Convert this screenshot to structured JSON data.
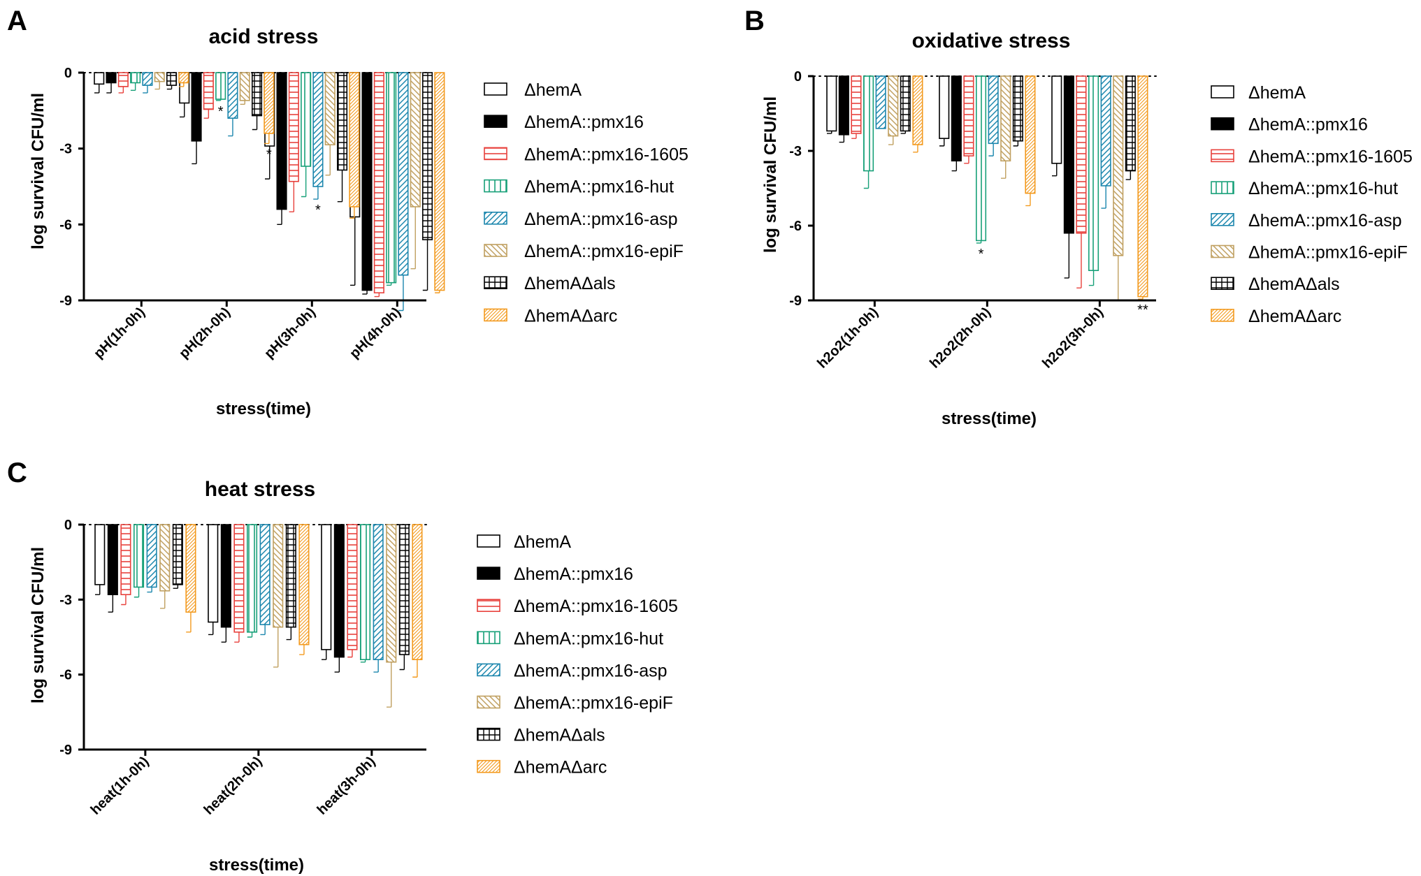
{
  "legend": [
    {
      "label": "ΔhemA",
      "color": "#000000",
      "pattern": "none"
    },
    {
      "label": "ΔhemA::pmx16",
      "color": "#000000",
      "pattern": "solid"
    },
    {
      "label": "ΔhemA::pmx16-1605",
      "color": "#e8413c",
      "pattern": "hlines"
    },
    {
      "label": "ΔhemA::pmx16-hut",
      "color": "#17a078",
      "pattern": "vlines"
    },
    {
      "label": "ΔhemA::pmx16-asp",
      "color": "#1b86ad",
      "pattern": "fdiag"
    },
    {
      "label": "ΔhemA::pmx16-epiF",
      "color": "#c0a060",
      "pattern": "bdiag"
    },
    {
      "label": "ΔhemAΔals",
      "color": "#000000",
      "pattern": "grid"
    },
    {
      "label": "ΔhemAΔarc",
      "color": "#f39a1e",
      "pattern": "dense"
    }
  ],
  "chart_data": [
    {
      "panel": "A",
      "type": "bar",
      "title": "acid stress",
      "xlabel": "stress(time)",
      "ylabel": "log survival CFU/ml",
      "ylim": [
        -9,
        0
      ],
      "yticks": [
        "0",
        "-3",
        "-6",
        "-9"
      ],
      "reference_line": 0,
      "categories": [
        "pH(1h-0h)",
        "pH(2h-0h)",
        "pH(3h-0h)",
        "pH(4h-0h)"
      ],
      "series": [
        {
          "name": "ΔhemA",
          "values": [
            -0.45,
            -1.2,
            -2.9,
            -5.7
          ],
          "errors": [
            0.35,
            0.55,
            1.3,
            2.7
          ]
        },
        {
          "name": "ΔhemA::pmx16",
          "values": [
            -0.4,
            -2.7,
            -5.4,
            -8.6
          ],
          "errors": [
            0.4,
            0.9,
            0.6,
            0.15
          ]
        },
        {
          "name": "ΔhemA::pmx16-1605",
          "values": [
            -0.55,
            -1.45,
            -4.3,
            -8.7
          ],
          "errors": [
            0.25,
            0.35,
            1.2,
            0.15
          ]
        },
        {
          "name": "ΔhemA::pmx16-hut",
          "values": [
            -0.4,
            -1.05,
            -3.7,
            -8.3
          ],
          "errors": [
            0.3,
            0.05,
            1.2,
            0.1
          ]
        },
        {
          "name": "ΔhemA::pmx16-asp",
          "values": [
            -0.5,
            -1.8,
            -4.5,
            -8.0
          ],
          "errors": [
            0.3,
            0.7,
            0.5,
            1.4
          ]
        },
        {
          "name": "ΔhemA::pmx16-epiF",
          "values": [
            -0.35,
            -1.1,
            -2.85,
            -5.3
          ],
          "errors": [
            0.3,
            0.15,
            1.2,
            2.45
          ]
        },
        {
          "name": "ΔhemAΔals",
          "values": [
            -0.5,
            -1.7,
            -3.85,
            -6.6
          ],
          "errors": [
            0.15,
            0.55,
            1.25,
            2.0
          ]
        },
        {
          "name": "ΔhemAΔarc",
          "values": [
            -0.4,
            -2.4,
            -5.3,
            -8.6
          ],
          "errors": [
            0.15,
            0.4,
            0.45,
            0.1
          ]
        }
      ],
      "annotations": [
        {
          "text": "*",
          "category": "pH(2h-0h)",
          "series": "ΔhemA::pmx16-hut"
        },
        {
          "text": "*",
          "category": "pH(2h-0h)",
          "series": "ΔhemAΔarc"
        },
        {
          "text": "*",
          "category": "pH(3h-0h)",
          "series": "ΔhemA::pmx16-asp"
        }
      ]
    },
    {
      "panel": "B",
      "type": "bar",
      "title": "oxidative stress",
      "xlabel": "stress(time)",
      "ylabel": "log survival CFU/ml",
      "ylim": [
        -9,
        0
      ],
      "yticks": [
        "0",
        "-3",
        "-6",
        "-9"
      ],
      "reference_line": 0,
      "categories": [
        "h2o2(1h-0h)",
        "h2o2(2h-0h)",
        "h2o2(3h-0h)"
      ],
      "series": [
        {
          "name": "ΔhemA",
          "values": [
            -2.2,
            -2.5,
            -3.5
          ],
          "errors": [
            0.1,
            0.3,
            0.5
          ]
        },
        {
          "name": "ΔhemA::pmx16",
          "values": [
            -2.35,
            -3.4,
            -6.3
          ],
          "errors": [
            0.3,
            0.4,
            1.8
          ]
        },
        {
          "name": "ΔhemA::pmx16-1605",
          "values": [
            -2.3,
            -3.2,
            -6.3
          ],
          "errors": [
            0.2,
            0.3,
            2.2
          ]
        },
        {
          "name": "ΔhemA::pmx16-hut",
          "values": [
            -3.8,
            -6.6,
            -7.8
          ],
          "errors": [
            0.7,
            0.1,
            0.6
          ]
        },
        {
          "name": "ΔhemA::pmx16-asp",
          "values": [
            -2.1,
            -2.7,
            -4.4
          ],
          "errors": [
            0.0,
            0.5,
            0.9
          ]
        },
        {
          "name": "ΔhemA::pmx16-epiF",
          "values": [
            -2.4,
            -3.4,
            -7.2
          ],
          "errors": [
            0.35,
            0.7,
            1.8
          ]
        },
        {
          "name": "ΔhemAΔals",
          "values": [
            -2.2,
            -2.6,
            -3.8
          ],
          "errors": [
            0.1,
            0.2,
            0.35
          ]
        },
        {
          "name": "ΔhemAΔarc",
          "values": [
            -2.75,
            -4.7,
            -8.85
          ],
          "errors": [
            0.3,
            0.5,
            0.1
          ]
        }
      ],
      "annotations": [
        {
          "text": "*",
          "category": "h2o2(2h-0h)",
          "series": "ΔhemA::pmx16-hut"
        },
        {
          "text": "**",
          "category": "h2o2(3h-0h)",
          "series": "ΔhemAΔarc"
        }
      ]
    },
    {
      "panel": "C",
      "type": "bar",
      "title": "heat stress",
      "xlabel": "stress(time)",
      "ylabel": "log survival CFU/ml",
      "ylim": [
        -9,
        0
      ],
      "yticks": [
        "0",
        "-3",
        "-6",
        "-9"
      ],
      "reference_line": 0,
      "categories": [
        "heat(1h-0h)",
        "heat(2h-0h)",
        "heat(3h-0h)"
      ],
      "series": [
        {
          "name": "ΔhemA",
          "values": [
            -2.4,
            -3.9,
            -5.0
          ],
          "errors": [
            0.4,
            0.5,
            0.4
          ]
        },
        {
          "name": "ΔhemA::pmx16",
          "values": [
            -2.8,
            -4.1,
            -5.3
          ],
          "errors": [
            0.7,
            0.6,
            0.6
          ]
        },
        {
          "name": "ΔhemA::pmx16-1605",
          "values": [
            -2.8,
            -4.3,
            -5.0
          ],
          "errors": [
            0.4,
            0.4,
            0.3
          ]
        },
        {
          "name": "ΔhemA::pmx16-hut",
          "values": [
            -2.5,
            -4.3,
            -5.4
          ],
          "errors": [
            0.4,
            0.2,
            0.1
          ]
        },
        {
          "name": "ΔhemA::pmx16-asp",
          "values": [
            -2.5,
            -4.0,
            -5.4
          ],
          "errors": [
            0.2,
            0.4,
            0.5
          ]
        },
        {
          "name": "ΔhemA::pmx16-epiF",
          "values": [
            -2.65,
            -4.1,
            -5.5
          ],
          "errors": [
            0.7,
            1.6,
            1.8
          ]
        },
        {
          "name": "ΔhemAΔals",
          "values": [
            -2.4,
            -4.1,
            -5.2
          ],
          "errors": [
            0.15,
            0.5,
            0.6
          ]
        },
        {
          "name": "ΔhemAΔarc",
          "values": [
            -3.5,
            -4.8,
            -5.4
          ],
          "errors": [
            0.8,
            0.4,
            0.7
          ]
        }
      ],
      "annotations": []
    }
  ]
}
